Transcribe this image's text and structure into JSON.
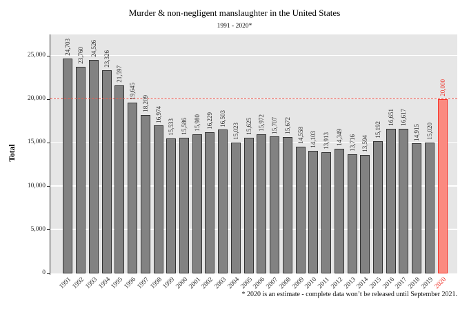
{
  "title": "Murder & non-negligent manslaughter in the United States",
  "subtitle": "1991 - 2020*",
  "footnote": "* 2020 is an estimate - complete data won’t be released until September 2021.",
  "chart_data": {
    "type": "bar",
    "title": "Murder & non-negligent manslaughter in the United States",
    "subtitle": "1991 - 2020*",
    "xlabel": "",
    "ylabel": "Total",
    "ylim": [
      0,
      25000
    ],
    "yticks": [
      0,
      5000,
      10000,
      15000,
      20000,
      25000
    ],
    "ytick_labels": [
      "0",
      "5,000",
      "10,000",
      "15,000",
      "20,000",
      "25,000"
    ],
    "grid": "horizontal major gridlines, white on gray panel",
    "legend": "none",
    "categories": [
      "1991",
      "1992",
      "1993",
      "1994",
      "1995",
      "1996",
      "1997",
      "1998",
      "1999",
      "2000",
      "2001",
      "2002",
      "2003",
      "2004",
      "2005",
      "2006",
      "2007",
      "2008",
      "2009",
      "2010",
      "2011",
      "2012",
      "2013",
      "2014",
      "2015",
      "2016",
      "2017",
      "2018",
      "2019",
      "2020"
    ],
    "values": [
      24703,
      23760,
      24526,
      23326,
      21597,
      19645,
      18209,
      16974,
      15533,
      15586,
      15980,
      16229,
      16503,
      15023,
      15625,
      15972,
      15707,
      15672,
      14558,
      14103,
      13913,
      14349,
      13716,
      13594,
      15192,
      16651,
      16617,
      14915,
      15020,
      20000
    ],
    "bar_labels": [
      "24,703",
      "23,760",
      "24,526",
      "23,326",
      "21,597",
      "19,645",
      "18,209",
      "16,974",
      "15,533",
      "15,586",
      "15,980",
      "16,229",
      "16,503",
      "15,023",
      "15,625",
      "15,972",
      "15,707",
      "15,672",
      "14,558",
      "14,103",
      "13,913",
      "14,349",
      "13,716",
      "13,594",
      "15,192",
      "16,651",
      "16,617",
      "14,915",
      "15,020",
      "20,000"
    ],
    "highlight_category": "2020",
    "reference_line": {
      "y": 20000,
      "label": "20,000",
      "style": "dashed",
      "color": "#f2584e"
    },
    "colors": {
      "panel_bg": "#e6e6e6",
      "grid": "#ffffff",
      "bar_fill": "#828282",
      "bar_border": "#333333",
      "highlight_fill": "#fb8a80",
      "highlight_border": "#f5352b",
      "accent_red": "#ee2e24",
      "text": "#2e2e2e"
    }
  }
}
